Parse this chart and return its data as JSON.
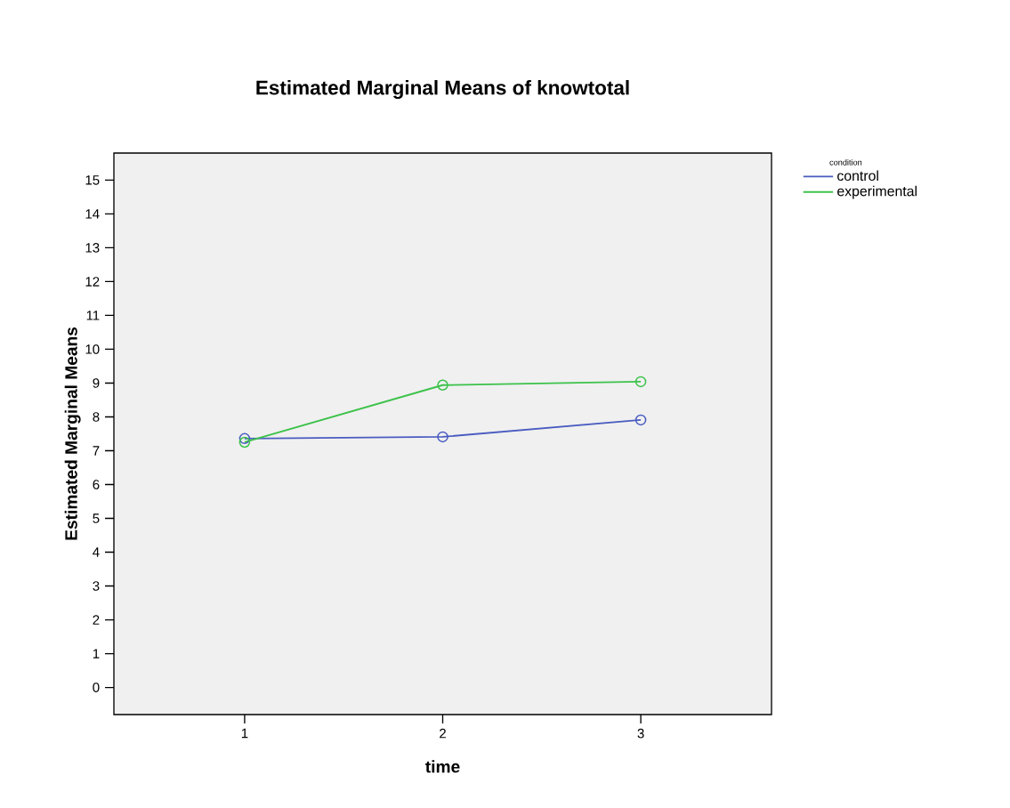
{
  "chart_data": {
    "type": "line",
    "title": "Estimated Marginal Means of knowtotal",
    "xlabel": "time",
    "ylabel": "Estimated Marginal Means",
    "legend_title": "condition",
    "categories": [
      "1",
      "2",
      "3"
    ],
    "series": [
      {
        "name": "control",
        "color": "#4a5cc0",
        "values": [
          7.36,
          7.41,
          7.91
        ]
      },
      {
        "name": "experimental",
        "color": "#3cc24a",
        "values": [
          7.25,
          8.94,
          9.04
        ]
      }
    ],
    "ylim": [
      -0.8,
      15.8
    ],
    "yticks": [
      0,
      1,
      2,
      3,
      4,
      5,
      6,
      7,
      8,
      9,
      10,
      11,
      12,
      13,
      14,
      15
    ],
    "legend": "top right",
    "marker": "circle",
    "line_style": "solid",
    "grid": false
  }
}
